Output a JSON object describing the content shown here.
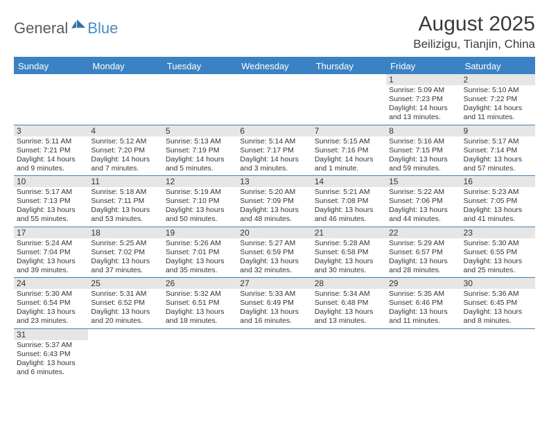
{
  "logo": {
    "text1": "General",
    "text2": "Blue"
  },
  "title": "August 2025",
  "location": "Beilizigu, Tianjin, China",
  "colors": {
    "header_bg": "#3b82c4",
    "header_text": "#ffffff",
    "daynum_bg": "#e6e6e6",
    "border": "#3b82c4",
    "logo_gray": "#5a5a5a",
    "logo_blue": "#4a8bc2"
  },
  "weekdays": [
    "Sunday",
    "Monday",
    "Tuesday",
    "Wednesday",
    "Thursday",
    "Friday",
    "Saturday"
  ],
  "first_weekday": 5,
  "days": [
    {
      "n": 1,
      "sunrise": "5:09 AM",
      "sunset": "7:23 PM",
      "daylight": "14 hours and 13 minutes."
    },
    {
      "n": 2,
      "sunrise": "5:10 AM",
      "sunset": "7:22 PM",
      "daylight": "14 hours and 11 minutes."
    },
    {
      "n": 3,
      "sunrise": "5:11 AM",
      "sunset": "7:21 PM",
      "daylight": "14 hours and 9 minutes."
    },
    {
      "n": 4,
      "sunrise": "5:12 AM",
      "sunset": "7:20 PM",
      "daylight": "14 hours and 7 minutes."
    },
    {
      "n": 5,
      "sunrise": "5:13 AM",
      "sunset": "7:19 PM",
      "daylight": "14 hours and 5 minutes."
    },
    {
      "n": 6,
      "sunrise": "5:14 AM",
      "sunset": "7:17 PM",
      "daylight": "14 hours and 3 minutes."
    },
    {
      "n": 7,
      "sunrise": "5:15 AM",
      "sunset": "7:16 PM",
      "daylight": "14 hours and 1 minute."
    },
    {
      "n": 8,
      "sunrise": "5:16 AM",
      "sunset": "7:15 PM",
      "daylight": "13 hours and 59 minutes."
    },
    {
      "n": 9,
      "sunrise": "5:17 AM",
      "sunset": "7:14 PM",
      "daylight": "13 hours and 57 minutes."
    },
    {
      "n": 10,
      "sunrise": "5:17 AM",
      "sunset": "7:13 PM",
      "daylight": "13 hours and 55 minutes."
    },
    {
      "n": 11,
      "sunrise": "5:18 AM",
      "sunset": "7:11 PM",
      "daylight": "13 hours and 53 minutes."
    },
    {
      "n": 12,
      "sunrise": "5:19 AM",
      "sunset": "7:10 PM",
      "daylight": "13 hours and 50 minutes."
    },
    {
      "n": 13,
      "sunrise": "5:20 AM",
      "sunset": "7:09 PM",
      "daylight": "13 hours and 48 minutes."
    },
    {
      "n": 14,
      "sunrise": "5:21 AM",
      "sunset": "7:08 PM",
      "daylight": "13 hours and 46 minutes."
    },
    {
      "n": 15,
      "sunrise": "5:22 AM",
      "sunset": "7:06 PM",
      "daylight": "13 hours and 44 minutes."
    },
    {
      "n": 16,
      "sunrise": "5:23 AM",
      "sunset": "7:05 PM",
      "daylight": "13 hours and 41 minutes."
    },
    {
      "n": 17,
      "sunrise": "5:24 AM",
      "sunset": "7:04 PM",
      "daylight": "13 hours and 39 minutes."
    },
    {
      "n": 18,
      "sunrise": "5:25 AM",
      "sunset": "7:02 PM",
      "daylight": "13 hours and 37 minutes."
    },
    {
      "n": 19,
      "sunrise": "5:26 AM",
      "sunset": "7:01 PM",
      "daylight": "13 hours and 35 minutes."
    },
    {
      "n": 20,
      "sunrise": "5:27 AM",
      "sunset": "6:59 PM",
      "daylight": "13 hours and 32 minutes."
    },
    {
      "n": 21,
      "sunrise": "5:28 AM",
      "sunset": "6:58 PM",
      "daylight": "13 hours and 30 minutes."
    },
    {
      "n": 22,
      "sunrise": "5:29 AM",
      "sunset": "6:57 PM",
      "daylight": "13 hours and 28 minutes."
    },
    {
      "n": 23,
      "sunrise": "5:30 AM",
      "sunset": "6:55 PM",
      "daylight": "13 hours and 25 minutes."
    },
    {
      "n": 24,
      "sunrise": "5:30 AM",
      "sunset": "6:54 PM",
      "daylight": "13 hours and 23 minutes."
    },
    {
      "n": 25,
      "sunrise": "5:31 AM",
      "sunset": "6:52 PM",
      "daylight": "13 hours and 20 minutes."
    },
    {
      "n": 26,
      "sunrise": "5:32 AM",
      "sunset": "6:51 PM",
      "daylight": "13 hours and 18 minutes."
    },
    {
      "n": 27,
      "sunrise": "5:33 AM",
      "sunset": "6:49 PM",
      "daylight": "13 hours and 16 minutes."
    },
    {
      "n": 28,
      "sunrise": "5:34 AM",
      "sunset": "6:48 PM",
      "daylight": "13 hours and 13 minutes."
    },
    {
      "n": 29,
      "sunrise": "5:35 AM",
      "sunset": "6:46 PM",
      "daylight": "13 hours and 11 minutes."
    },
    {
      "n": 30,
      "sunrise": "5:36 AM",
      "sunset": "6:45 PM",
      "daylight": "13 hours and 8 minutes."
    },
    {
      "n": 31,
      "sunrise": "5:37 AM",
      "sunset": "6:43 PM",
      "daylight": "13 hours and 6 minutes."
    }
  ],
  "labels": {
    "sunrise": "Sunrise:",
    "sunset": "Sunset:",
    "daylight": "Daylight:"
  }
}
